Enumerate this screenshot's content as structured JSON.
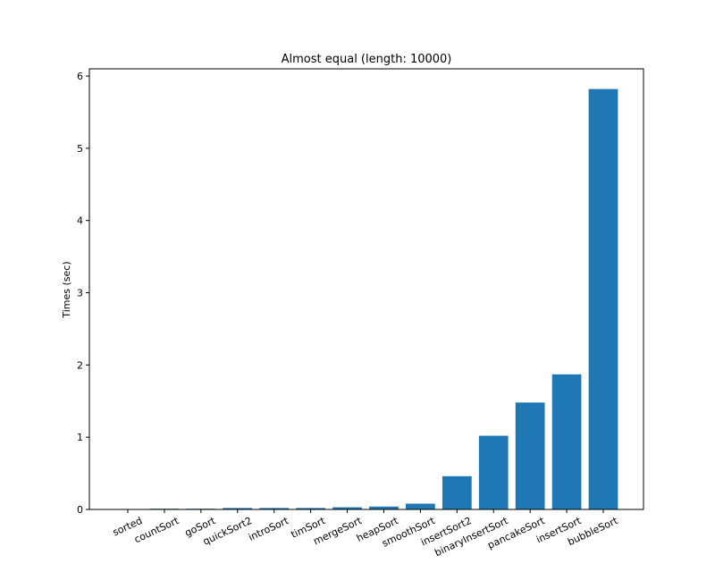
{
  "chart_data": {
    "type": "bar",
    "title": "Almost equal (length: 10000)",
    "xlabel": "",
    "ylabel": "Times (sec)",
    "ylim": [
      0,
      6.1
    ],
    "yticks": [
      0,
      1,
      2,
      3,
      4,
      5,
      6
    ],
    "grid": false,
    "bar_color": "#1f77b4",
    "categories": [
      "sorted",
      "countSort",
      "goSort",
      "quickSort2",
      "introSort",
      "timSort",
      "mergeSort",
      "heapSort",
      "smoothSort",
      "insertSort2",
      "binaryInsertSort",
      "pancakeSort",
      "insertSort",
      "bubbleSort"
    ],
    "values": [
      0.0,
      0.01,
      0.01,
      0.02,
      0.02,
      0.02,
      0.03,
      0.04,
      0.08,
      0.46,
      1.02,
      1.48,
      1.87,
      5.82
    ]
  }
}
